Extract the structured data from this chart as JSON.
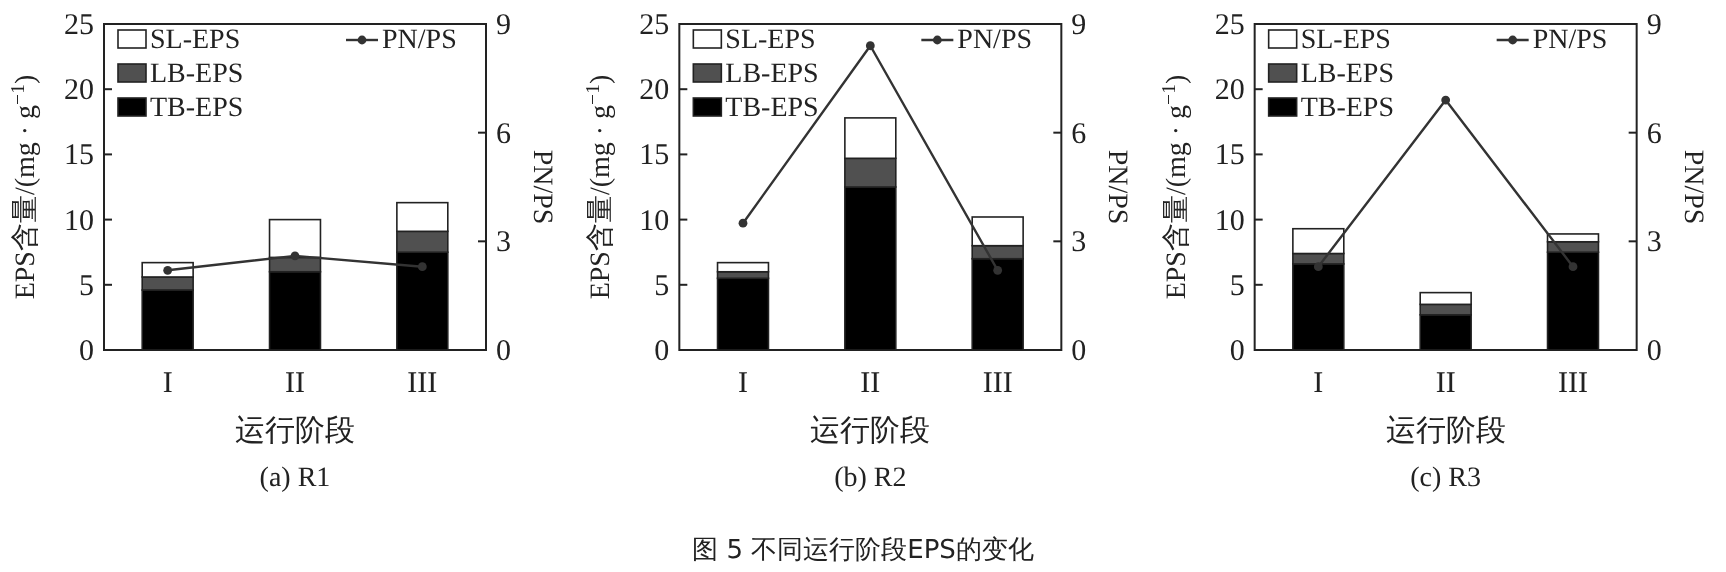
{
  "chart_data": [
    {
      "type": "bar",
      "stacked": true,
      "title": "(a) R1",
      "xlabel": "运行阶段",
      "ylabel": "EPS含量/(mg · g$^{−1}$)",
      "y2label": "PN/PS",
      "categories": [
        "I",
        "II",
        "III"
      ],
      "ylim": [
        0,
        25
      ],
      "yticks": [
        0,
        5,
        10,
        15,
        20,
        25
      ],
      "y2lim": [
        0,
        9
      ],
      "y2ticks": [
        0,
        3,
        6,
        9
      ],
      "legend": "top",
      "marker": "circle",
      "series": [
        {
          "name": "TB-EPS",
          "color": "#000000",
          "values": [
            4.6,
            6.0,
            7.5
          ]
        },
        {
          "name": "LB-EPS",
          "color": "#505050",
          "values": [
            1.0,
            1.1,
            1.6
          ]
        },
        {
          "name": "SL-EPS",
          "color": "#ffffff",
          "values": [
            1.1,
            2.9,
            2.2
          ]
        },
        {
          "name": "PN/PS",
          "type": "line",
          "axis": "y2",
          "color": "#333333",
          "values": [
            2.2,
            2.6,
            2.3
          ]
        }
      ]
    },
    {
      "type": "bar",
      "stacked": true,
      "title": "(b) R2",
      "xlabel": "运行阶段",
      "ylabel": "EPS含量/(mg · g$^{−1}$)",
      "y2label": "PN/PS",
      "categories": [
        "I",
        "II",
        "III"
      ],
      "ylim": [
        0,
        25
      ],
      "yticks": [
        0,
        5,
        10,
        15,
        20,
        25
      ],
      "y2lim": [
        0,
        9
      ],
      "y2ticks": [
        0,
        3,
        6,
        9
      ],
      "legend": "top",
      "marker": "circle",
      "annotations": [
        "图 5  不同运行阶段EPS的变化"
      ],
      "series": [
        {
          "name": "TB-EPS",
          "color": "#000000",
          "values": [
            5.5,
            12.5,
            7.0
          ]
        },
        {
          "name": "LB-EPS",
          "color": "#505050",
          "values": [
            0.5,
            2.2,
            1.0
          ]
        },
        {
          "name": "SL-EPS",
          "color": "#ffffff",
          "values": [
            0.7,
            3.1,
            2.2
          ]
        },
        {
          "name": "PN/PS",
          "type": "line",
          "axis": "y2",
          "color": "#333333",
          "values": [
            3.5,
            8.4,
            2.2
          ]
        }
      ]
    },
    {
      "type": "bar",
      "stacked": true,
      "title": "(c) R3",
      "xlabel": "运行阶段",
      "ylabel": "EPS含量/(mg · g$^{−1}$)",
      "y2label": "PN/PS",
      "categories": [
        "I",
        "II",
        "III"
      ],
      "ylim": [
        0,
        25
      ],
      "yticks": [
        0,
        5,
        10,
        15,
        20,
        25
      ],
      "y2lim": [
        0,
        9
      ],
      "y2ticks": [
        0,
        3,
        6,
        9
      ],
      "legend": "top",
      "marker": "circle",
      "series": [
        {
          "name": "TB-EPS",
          "color": "#000000",
          "values": [
            6.6,
            2.7,
            7.5
          ]
        },
        {
          "name": "LB-EPS",
          "color": "#505050",
          "values": [
            0.8,
            0.8,
            0.8
          ]
        },
        {
          "name": "SL-EPS",
          "color": "#ffffff",
          "values": [
            1.9,
            0.9,
            0.6
          ]
        },
        {
          "name": "PN/PS",
          "type": "line",
          "axis": "y2",
          "color": "#333333",
          "values": [
            2.3,
            6.9,
            2.3
          ]
        }
      ]
    }
  ]
}
